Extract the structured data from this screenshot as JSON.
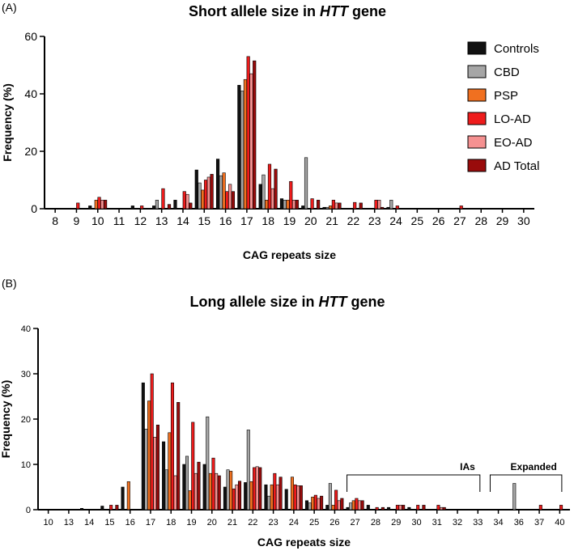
{
  "colors": {
    "Controls": "#111111",
    "CBD": "#a6a6a6",
    "PSP": "#f07020",
    "LO-AD": "#ee1c1c",
    "EO-AD": "#f59191",
    "AD Total": "#990b0b"
  },
  "chart_data": [
    {
      "type": "bar",
      "panel_label": "(A)",
      "title_parts": [
        "Short allele size in ",
        "HTT",
        " gene"
      ],
      "xlabel": "CAG repeats size",
      "ylabel": "Frequency (%)",
      "ylim": [
        0,
        60
      ],
      "yticks": [
        0,
        20,
        40,
        60
      ],
      "legend": [
        "Controls",
        "CBD",
        "PSP",
        "LO-AD",
        "EO-AD",
        "AD Total"
      ],
      "legend_position": "top-right",
      "categories": [
        "8",
        "9",
        "10",
        "11",
        "12",
        "13",
        "14",
        "15",
        "16",
        "17",
        "18",
        "19",
        "20",
        "21",
        "22",
        "23",
        "24",
        "25",
        "26",
        "27",
        "28",
        "29",
        "30"
      ],
      "series": [
        {
          "name": "Controls",
          "values": [
            0,
            0,
            1,
            0,
            1,
            1,
            3,
            13.5,
            17.3,
            43,
            8.5,
            3.5,
            1,
            0.5,
            0,
            0,
            0.5,
            0,
            0,
            0,
            0,
            0,
            0
          ]
        },
        {
          "name": "CBD",
          "values": [
            0,
            0,
            0,
            0,
            0,
            3,
            0,
            9,
            11.5,
            41,
            11.8,
            3,
            17.8,
            0.5,
            0,
            0,
            3,
            0,
            0,
            0,
            0,
            0,
            0
          ]
        },
        {
          "name": "PSP",
          "values": [
            0,
            0,
            3,
            0,
            0,
            0,
            0,
            6.5,
            12.5,
            45,
            3,
            3,
            0,
            1,
            0,
            0,
            0,
            0,
            0,
            0,
            0,
            0,
            0
          ]
        },
        {
          "name": "LO-AD",
          "values": [
            0,
            2,
            4,
            0,
            1,
            7,
            6,
            10,
            6,
            53,
            15.5,
            9.5,
            3.5,
            3,
            2.2,
            3,
            1,
            0,
            0,
            1,
            0,
            0,
            0
          ]
        },
        {
          "name": "EO-AD",
          "values": [
            0,
            0,
            3,
            0,
            0,
            0,
            5,
            11,
            8.5,
            47,
            7,
            3,
            0,
            2,
            0,
            3,
            0,
            0,
            0,
            0,
            0,
            0,
            0
          ]
        },
        {
          "name": "AD Total",
          "values": [
            0,
            0,
            3,
            0,
            0,
            1.5,
            2,
            12,
            6,
            51.5,
            13.8,
            3,
            3,
            2,
            2,
            0.5,
            0,
            0,
            0,
            0,
            0,
            0,
            0
          ]
        }
      ]
    },
    {
      "type": "bar",
      "panel_label": "(B)",
      "title_parts": [
        "Long allele size in ",
        "HTT",
        " gene"
      ],
      "xlabel": "CAG repeats size",
      "ylabel": "Frequency (%)",
      "ylim": [
        0,
        40
      ],
      "yticks": [
        0,
        10,
        20,
        30,
        40
      ],
      "categories": [
        "10",
        "13",
        "14",
        "15",
        "16",
        "17",
        "18",
        "19",
        "20",
        "21",
        "22",
        "23",
        "24",
        "25",
        "26",
        "27",
        "28",
        "29",
        "30",
        "31",
        "32",
        "33",
        "34",
        "36",
        "37",
        "40"
      ],
      "series": [
        {
          "name": "Controls",
          "values": [
            0,
            0,
            0.3,
            0.8,
            5,
            28,
            15,
            10,
            10,
            5,
            6,
            5.5,
            4.5,
            2,
            1,
            0.5,
            1,
            0.5,
            0.5,
            0,
            0,
            0,
            0,
            0,
            0,
            0
          ]
        },
        {
          "name": "CBD",
          "values": [
            0,
            0,
            0,
            0,
            0,
            17.8,
            8.8,
            11.8,
            20.5,
            8.8,
            17.6,
            3,
            0,
            1.5,
            5.8,
            1.5,
            0,
            0,
            0,
            0,
            0,
            0,
            0,
            5.8,
            0,
            0
          ]
        },
        {
          "name": "PSP",
          "values": [
            0,
            0,
            0,
            0,
            6.2,
            24,
            17,
            4.2,
            8,
            8.5,
            6.2,
            5.5,
            7.2,
            2.8,
            1,
            2,
            0,
            0,
            0,
            0,
            0,
            0,
            0,
            0,
            0,
            0
          ]
        },
        {
          "name": "LO-AD",
          "values": [
            0,
            0,
            0,
            1,
            0,
            30,
            28,
            19.3,
            11.4,
            4.6,
            9.3,
            8,
            5.5,
            3.2,
            4.3,
            2.5,
            0.5,
            1,
            1,
            1,
            0,
            0,
            0,
            0,
            1,
            1
          ]
        },
        {
          "name": "EO-AD",
          "values": [
            0,
            0,
            0,
            0,
            0,
            16,
            7.5,
            8,
            8,
            5.5,
            9.5,
            5.5,
            5.3,
            2.5,
            2,
            2,
            0,
            1,
            0,
            0.5,
            0,
            0,
            0,
            0,
            0,
            0
          ]
        },
        {
          "name": "AD Total",
          "values": [
            0,
            0,
            0,
            1,
            0,
            18.7,
            23.7,
            10.5,
            7.5,
            6.3,
            9.3,
            7.2,
            5.3,
            3,
            2.5,
            2,
            0.5,
            1,
            1,
            0.5,
            0,
            0,
            0,
            0,
            0,
            0
          ]
        }
      ],
      "annotations": [
        {
          "label": "IAs",
          "from_category": "27",
          "to_category": "33"
        },
        {
          "label": "Expanded",
          "from_category": "34",
          "to_category": "40"
        }
      ]
    }
  ]
}
